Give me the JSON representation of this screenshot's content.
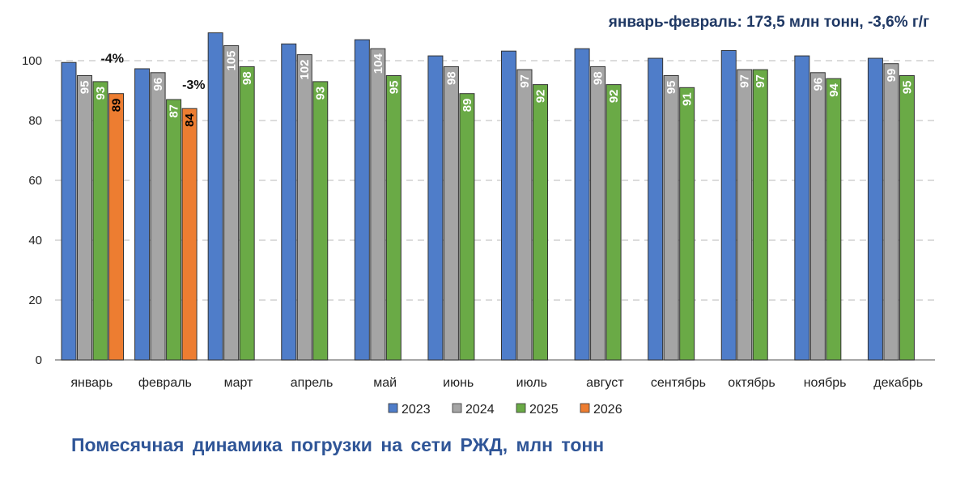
{
  "chart_data": {
    "type": "bar",
    "title": "Помесячная  динамика  погрузки  на сети РЖД, млн тонн",
    "subtitle": "январь-февраль:  173,5 млн тонн, -3,6% г/г",
    "categories": [
      "январь",
      "февраль",
      "март",
      "апрель",
      "май",
      "июнь",
      "июль",
      "август",
      "сентябрь",
      "октябрь",
      "ноябрь",
      "декабрь"
    ],
    "series": [
      {
        "name": "2023",
        "color": "#4f7dc9",
        "labeled": false,
        "values": [
          99.4,
          97.3,
          109.3,
          105.6,
          107,
          101.6,
          103.2,
          104,
          100.8,
          103.4,
          101.6,
          100.8
        ]
      },
      {
        "name": "2024",
        "color": "#a5a5a5",
        "labeled": true,
        "values": [
          95,
          96,
          105,
          102,
          104,
          98,
          97,
          98,
          95,
          97,
          96,
          99
        ]
      },
      {
        "name": "2025",
        "color": "#6aaa46",
        "labeled": true,
        "values": [
          93,
          87,
          98,
          93,
          95,
          89,
          92,
          92,
          91,
          97,
          94,
          95
        ]
      },
      {
        "name": "2026",
        "color": "#ed7d31",
        "labeled": true,
        "values": [
          89,
          84,
          null,
          null,
          null,
          null,
          null,
          null,
          null,
          null,
          null,
          null
        ]
      }
    ],
    "annotations": [
      {
        "category": "январь",
        "text": "-4%"
      },
      {
        "category": "февраль",
        "text": "-3%"
      }
    ],
    "ylim": [
      0,
      110
    ],
    "yticks": [
      0,
      20,
      40,
      60,
      80,
      100
    ],
    "grid": true,
    "legend_position": "bottom"
  }
}
